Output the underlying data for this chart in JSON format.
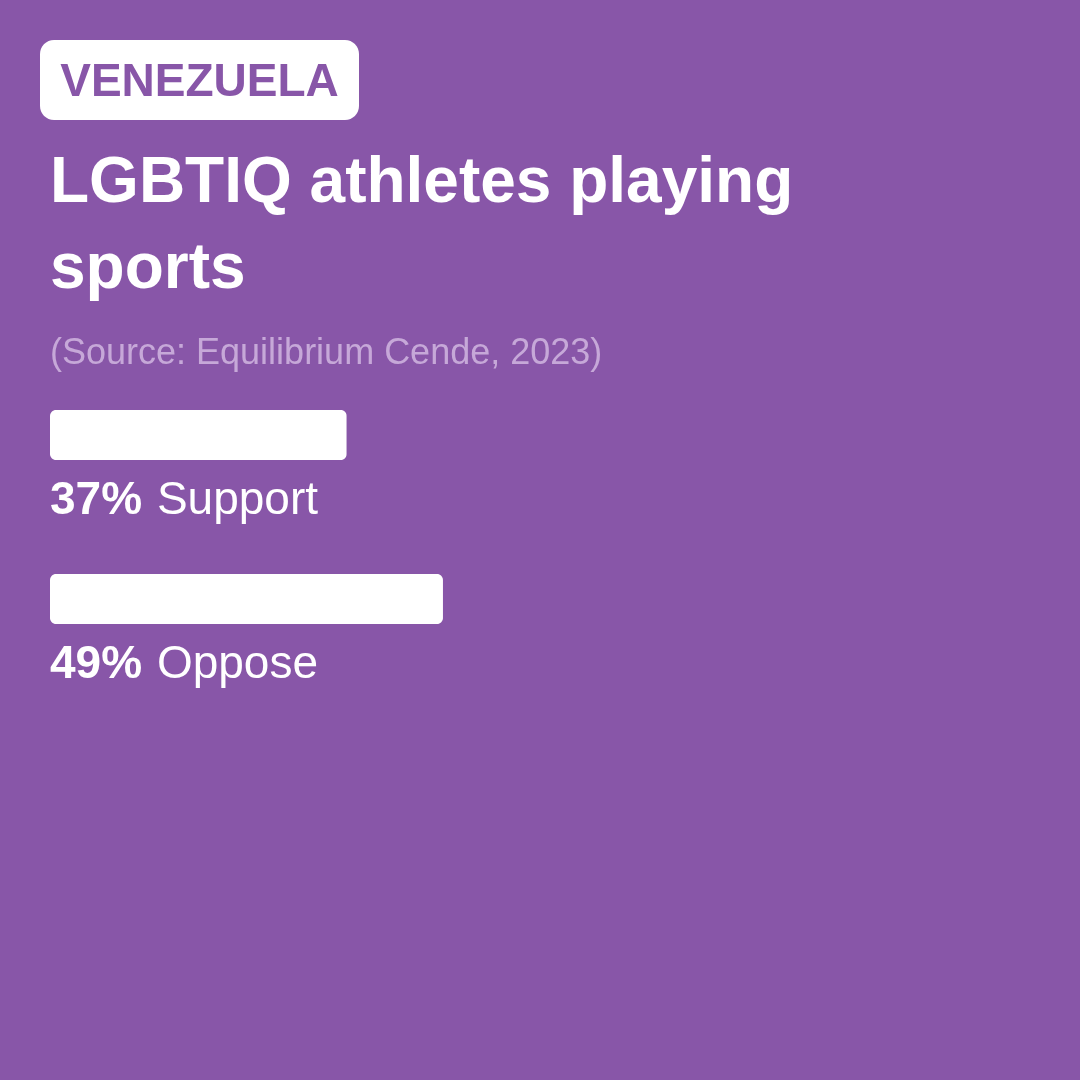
{
  "chart_data": {
    "type": "bar",
    "orientation": "horizontal",
    "title": "LGBTIQ athletes playing sports",
    "annotations": [
      "VENEZUELA",
      "(Source: Equilibrium Cende, 2023)"
    ],
    "categories": [
      "Support",
      "Oppose"
    ],
    "values": [
      37,
      49
    ],
    "value_labels": [
      "37%",
      "49%"
    ],
    "color": "#ffffff"
  }
}
